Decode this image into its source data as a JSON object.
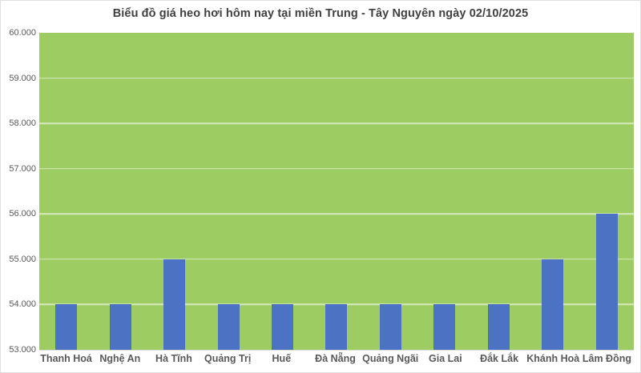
{
  "chart_data": {
    "type": "bar",
    "title": "Biểu đồ giá heo hơi hôm nay tại miền Trung - Tây Nguyên ngày 02/10/2025",
    "categories": [
      "Thanh Hoá",
      "Nghệ An",
      "Hà Tĩnh",
      "Quảng Trị",
      "Huế",
      "Đà Nẵng",
      "Quảng Ngãi",
      "Gia Lai",
      "Đắk Lắk",
      "Khánh Hoà",
      "Lâm Đồng"
    ],
    "values": [
      54000,
      54000,
      55000,
      54000,
      54000,
      54000,
      54000,
      54000,
      54000,
      55000,
      56000
    ],
    "xlabel": "",
    "ylabel": "",
    "ylim": [
      53000,
      60000
    ],
    "y_tick_step": 1000,
    "y_tick_labels": [
      "53.000",
      "54.000",
      "55.000",
      "56.000",
      "57.000",
      "58.000",
      "59.000",
      "60.000"
    ],
    "grid": true,
    "legend_position": "none",
    "colors": {
      "bar_fill": "#4C72C4",
      "plot_background": "#9DCC62",
      "gridline": "#D6E9BE",
      "title_text": "#404040",
      "axis_text": "#595959",
      "chart_background": "#FFFFFF",
      "frame_border": "#E0E0E0"
    }
  }
}
